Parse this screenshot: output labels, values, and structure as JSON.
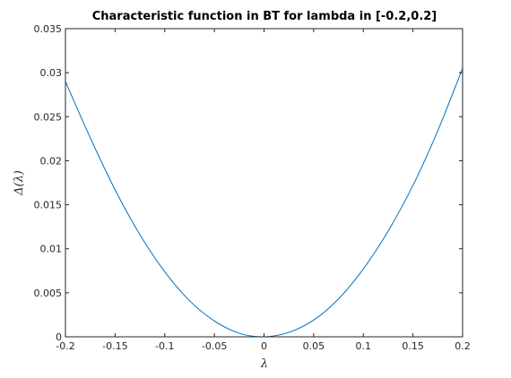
{
  "chart_data": {
    "type": "line",
    "title": "Characteristic function in BT for lambda in [-0.2,0.2]",
    "xlabel": "λ",
    "ylabel": "Δ(λ)",
    "xlim": [
      -0.2,
      0.2
    ],
    "ylim": [
      0,
      0.035
    ],
    "x_ticks": [
      -0.2,
      -0.15,
      -0.1,
      -0.05,
      0,
      0.05,
      0.1,
      0.15,
      0.2
    ],
    "x_tick_labels": [
      "-0.2",
      "-0.15",
      "-0.1",
      "-0.05",
      "0",
      "0.05",
      "0.1",
      "0.15",
      "0.2"
    ],
    "y_ticks": [
      0,
      0.005,
      0.01,
      0.015,
      0.02,
      0.025,
      0.03,
      0.035
    ],
    "y_tick_labels": [
      "0",
      "0.005",
      "0.01",
      "0.015",
      "0.02",
      "0.025",
      "0.03",
      "0.035"
    ],
    "grid": false,
    "box": true,
    "line_color": "#0072bd",
    "series": [
      {
        "x": [
          -0.2,
          -0.175,
          -0.15,
          -0.125,
          -0.1,
          -0.075,
          -0.05,
          -0.025,
          0,
          0.025,
          0.05,
          0.075,
          0.1,
          0.125,
          0.15,
          0.175,
          0.2
        ],
        "values": [
          0.029,
          0.0226,
          0.0167,
          0.0116,
          0.0074,
          0.0041,
          0.0018,
          0.0004,
          0.0,
          0.0005,
          0.0019,
          0.0043,
          0.0077,
          0.012,
          0.0172,
          0.0234,
          0.0305
        ]
      }
    ]
  }
}
